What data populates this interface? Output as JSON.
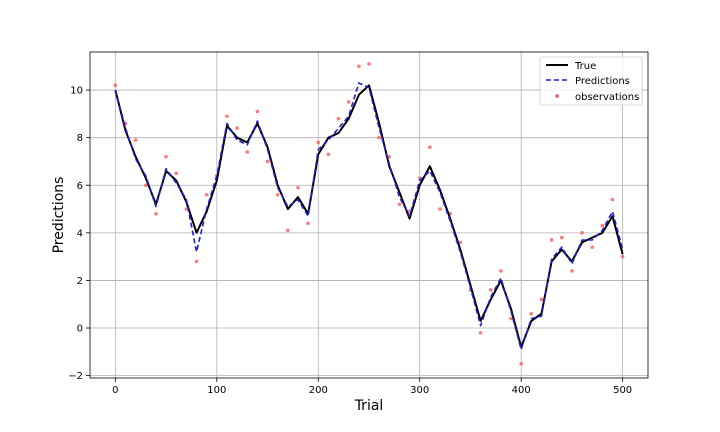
{
  "chart_data": {
    "type": "line",
    "title": "",
    "xlabel": "Trial",
    "ylabel": "Predictions",
    "xlim": [
      -25,
      525
    ],
    "ylim": [
      -2.1,
      11.6
    ],
    "xticks": [
      0,
      100,
      200,
      300,
      400,
      500
    ],
    "yticks": [
      -2,
      0,
      2,
      4,
      6,
      8,
      10
    ],
    "grid": true,
    "legend_position": "top-right",
    "x": [
      0,
      10,
      20,
      30,
      40,
      50,
      60,
      70,
      80,
      90,
      100,
      110,
      120,
      130,
      140,
      150,
      160,
      170,
      180,
      190,
      200,
      210,
      220,
      230,
      240,
      250,
      260,
      270,
      280,
      290,
      300,
      310,
      320,
      330,
      340,
      350,
      360,
      370,
      380,
      390,
      400,
      410,
      420,
      430,
      440,
      450,
      460,
      470,
      480,
      490,
      500
    ],
    "series": [
      {
        "name": "True",
        "style": "solid",
        "color": "#000000",
        "values": [
          10.0,
          8.3,
          7.2,
          6.3,
          5.2,
          6.6,
          6.2,
          5.3,
          4.0,
          4.9,
          6.2,
          8.5,
          8.0,
          7.8,
          8.6,
          7.6,
          6.0,
          5.0,
          5.5,
          4.8,
          7.3,
          8.0,
          8.2,
          8.8,
          9.8,
          10.2,
          8.6,
          6.8,
          5.7,
          4.6,
          6.0,
          6.8,
          5.8,
          4.6,
          3.3,
          1.8,
          0.3,
          1.2,
          2.0,
          0.8,
          -0.8,
          0.3,
          0.6,
          2.8,
          3.3,
          2.8,
          3.6,
          3.8,
          4.0,
          4.7,
          3.1
        ]
      },
      {
        "name": "Predictions",
        "style": "dashed",
        "color": "#1f1fd6",
        "values": [
          10.0,
          8.4,
          7.1,
          6.4,
          5.1,
          6.7,
          6.1,
          5.4,
          3.2,
          5.0,
          6.4,
          8.6,
          7.9,
          7.7,
          8.7,
          7.5,
          5.9,
          5.1,
          5.4,
          4.7,
          7.5,
          7.9,
          8.4,
          8.9,
          10.3,
          10.1,
          8.4,
          6.9,
          5.5,
          4.7,
          6.2,
          6.6,
          5.7,
          4.5,
          3.2,
          1.7,
          0.1,
          1.3,
          2.1,
          0.7,
          -0.9,
          0.4,
          0.5,
          2.9,
          3.4,
          2.7,
          3.7,
          3.7,
          4.1,
          4.9,
          3.3
        ]
      },
      {
        "name": "observations",
        "style": "scatter",
        "color": "#ff4d4d",
        "values": [
          10.2,
          8.6,
          7.9,
          6.0,
          4.8,
          7.2,
          6.5,
          5.0,
          2.8,
          5.6,
          6.4,
          8.9,
          8.4,
          7.4,
          9.1,
          7.0,
          5.6,
          4.1,
          5.9,
          4.4,
          7.8,
          7.3,
          8.8,
          9.5,
          11.0,
          11.1,
          8.0,
          7.2,
          5.2,
          4.9,
          6.3,
          7.6,
          5.0,
          4.8,
          3.6,
          1.6,
          -0.2,
          1.6,
          2.4,
          0.4,
          -1.5,
          0.6,
          1.2,
          3.7,
          3.8,
          2.4,
          4.0,
          3.4,
          4.3,
          5.4,
          3.0
        ]
      }
    ]
  }
}
